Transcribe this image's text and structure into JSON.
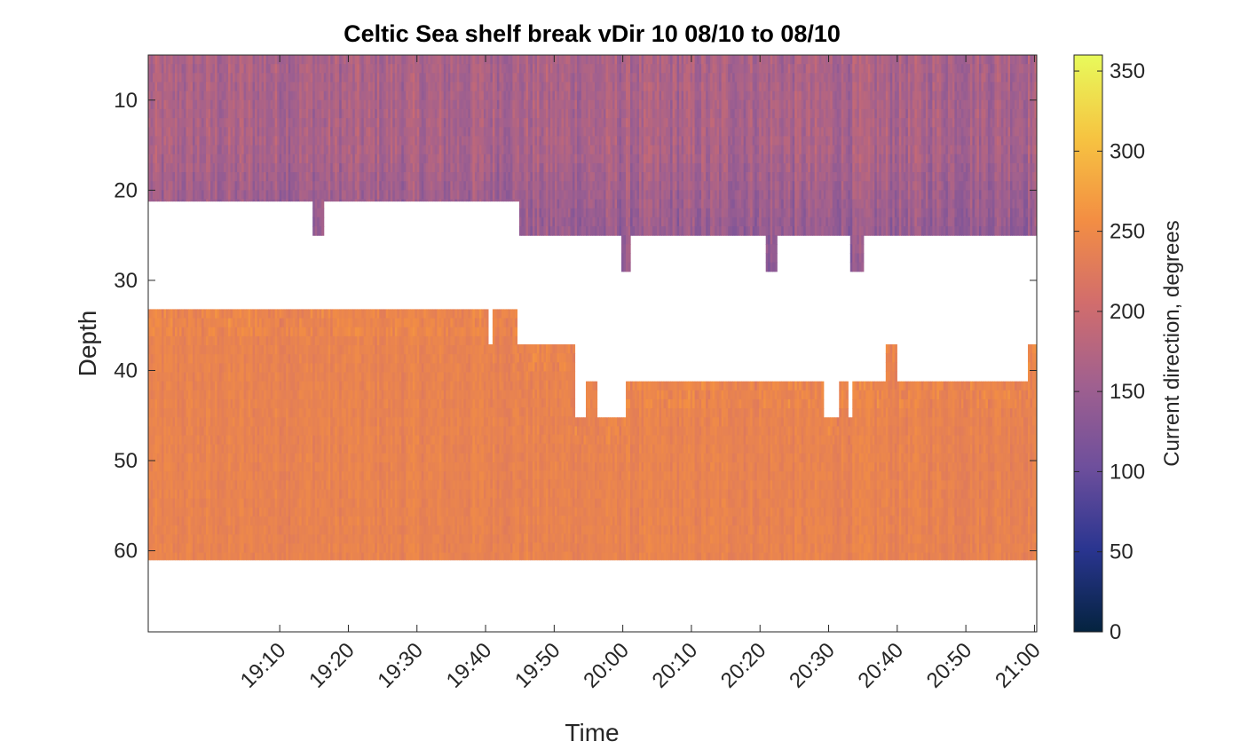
{
  "chart_data": {
    "type": "heatmap",
    "title": "Celtic Sea shelf break vDir 10 08/10 to 08/10",
    "xlabel": "Time",
    "ylabel": "Depth",
    "colorbar_label": "Current direction, degrees",
    "x_ticks": [
      "19:10",
      "19:20",
      "19:30",
      "19:40",
      "19:50",
      "20:00",
      "20:10",
      "20:20",
      "20:30",
      "20:40",
      "20:50",
      "21:00"
    ],
    "y_ticks": [
      10,
      20,
      30,
      40,
      50,
      60
    ],
    "y_reversed": true,
    "ylim": [
      5,
      69
    ],
    "xlim": [
      "19:06:50",
      "21:00:20"
    ],
    "clim": [
      0,
      360
    ],
    "colorbar_ticks": [
      0,
      50,
      100,
      150,
      200,
      250,
      300,
      350
    ],
    "colormap": "thermal",
    "colormap_stops": [
      "#04233f",
      "#2a3590",
      "#6e4f9c",
      "#a0608f",
      "#d26d6c",
      "#f38e43",
      "#f6c441",
      "#e8fa5b"
    ],
    "upper_layer": {
      "typical_direction_deg": 165,
      "depth_range": [
        5,
        25
      ],
      "description_color": "#a65c8a"
    },
    "lower_layer": {
      "typical_direction_deg": 240,
      "depth_range": [
        33,
        61
      ],
      "description_color": "#ee7f50"
    },
    "no_data_value": null
  }
}
